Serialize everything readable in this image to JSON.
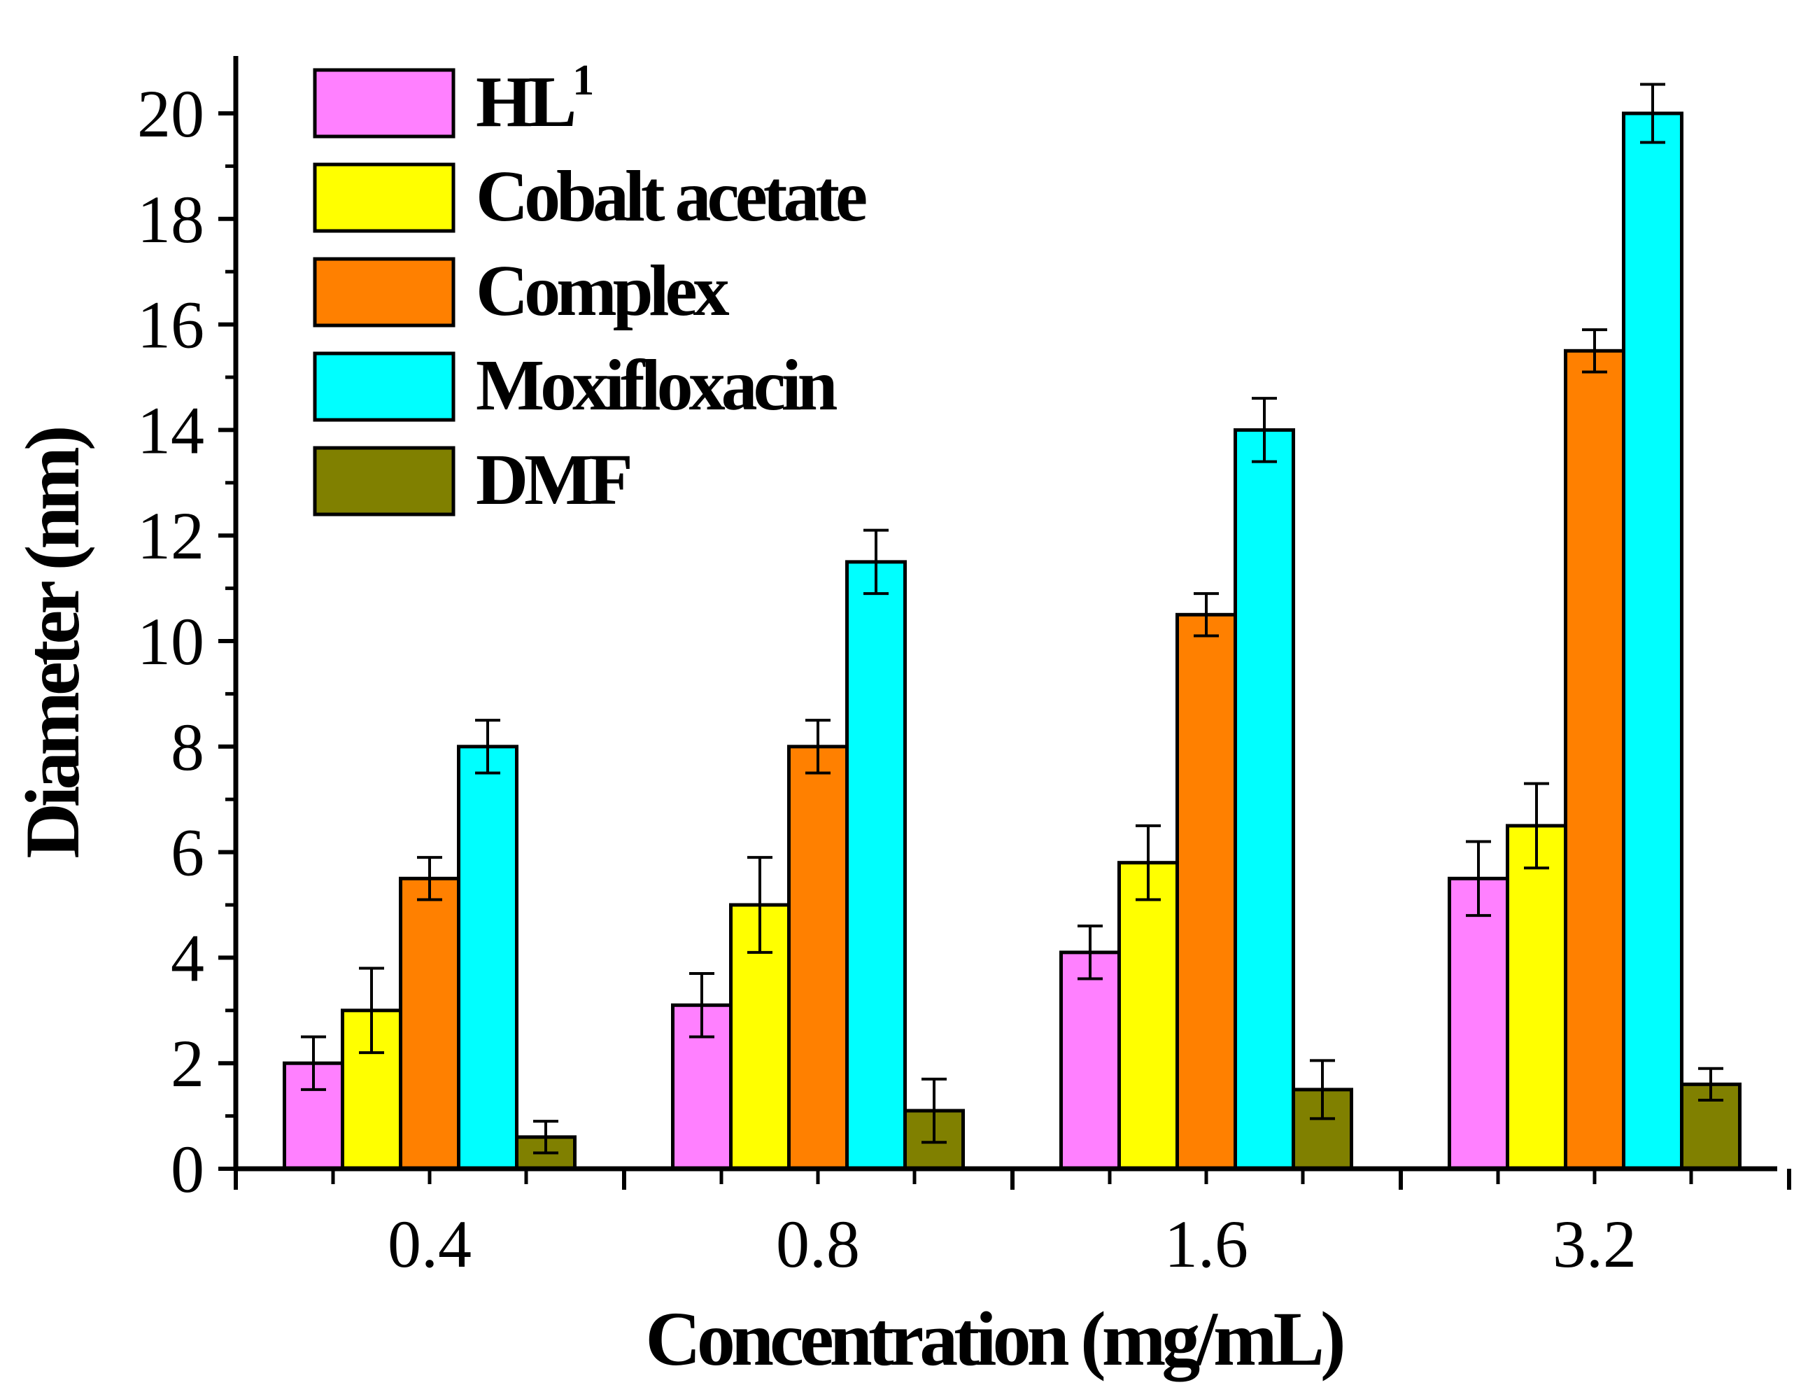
{
  "chart_data": {
    "type": "bar",
    "title": "",
    "xlabel": "Concentration (mg/mL)",
    "ylabel": "Diameter (nm)",
    "categories": [
      "0.4",
      "0.8",
      "1.6",
      "3.2"
    ],
    "ylim": [
      0,
      21
    ],
    "yticks": [
      "0",
      "2",
      "4",
      "6",
      "8",
      "10",
      "12",
      "14",
      "16",
      "18",
      "20"
    ],
    "legend_position": "top-left",
    "grid": false,
    "error_bars": true,
    "series": [
      {
        "name": "HL",
        "name_superscript": "1",
        "color": "#ff80ff",
        "values": [
          2.0,
          3.1,
          4.1,
          5.5
        ],
        "errors": [
          0.5,
          0.6,
          0.5,
          0.7
        ]
      },
      {
        "name": "Cobalt acetate",
        "color": "#ffff00",
        "values": [
          3.0,
          5.0,
          5.8,
          6.5
        ],
        "errors": [
          0.8,
          0.9,
          0.7,
          0.8
        ]
      },
      {
        "name": "Complex",
        "color": "#ff8000",
        "values": [
          5.5,
          8.0,
          10.5,
          15.5
        ],
        "errors": [
          0.4,
          0.5,
          0.4,
          0.4
        ]
      },
      {
        "name": "Moxifloxacin",
        "color": "#00ffff",
        "values": [
          8.0,
          11.5,
          14.0,
          20.0
        ],
        "errors": [
          0.5,
          0.6,
          0.6,
          0.55
        ]
      },
      {
        "name": "DMF",
        "color": "#808000",
        "values": [
          0.6,
          1.1,
          1.5,
          1.6
        ],
        "errors": [
          0.3,
          0.6,
          0.55,
          0.3
        ]
      }
    ]
  }
}
